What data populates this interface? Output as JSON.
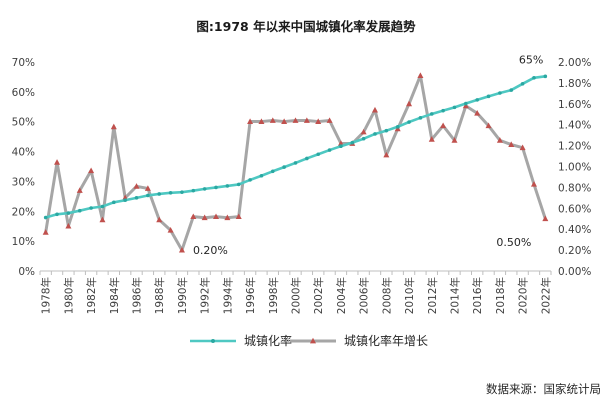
{
  "chart_data": {
    "type": "line",
    "title": "图:1978 年以来中国城镇化率发展趋势",
    "x": [
      "1978",
      "1979",
      "1980",
      "1981",
      "1982",
      "1983",
      "1984",
      "1985",
      "1986",
      "1987",
      "1988",
      "1989",
      "1990",
      "1991",
      "1992",
      "1993",
      "1994",
      "1995",
      "1996",
      "1997",
      "1998",
      "1999",
      "2000",
      "2001",
      "2002",
      "2003",
      "2004",
      "2005",
      "2006",
      "2007",
      "2008",
      "2009",
      "2010",
      "2011",
      "2012",
      "2013",
      "2014",
      "2015",
      "2016",
      "2017",
      "2018",
      "2019",
      "2020",
      "2021",
      "2022"
    ],
    "x_tick_labels": [
      "1978年",
      "1980年",
      "1982年",
      "1984年",
      "1986年",
      "1988年",
      "1990年",
      "1992年",
      "1994年",
      "1996年",
      "1998年",
      "2000年",
      "2002年",
      "2004年",
      "2006年",
      "2008年",
      "2010年",
      "2012年",
      "2014年",
      "2016年",
      "2018年",
      "2020年",
      "2022年"
    ],
    "y_left": {
      "range": [
        0,
        70
      ],
      "ticks": [
        "0%",
        "10%",
        "20%",
        "30%",
        "40%",
        "50%",
        "60%",
        "70%"
      ]
    },
    "y_right": {
      "range": [
        0,
        2.0
      ],
      "ticks": [
        "0.00%",
        "0.20%",
        "0.40%",
        "0.60%",
        "0.80%",
        "1.00%",
        "1.20%",
        "1.40%",
        "1.60%",
        "1.80%",
        "2.00%"
      ]
    },
    "series": [
      {
        "name": "城镇化率",
        "axis": "left",
        "color": "#4ec8c2",
        "values": [
          17.9,
          19.0,
          19.4,
          20.2,
          21.1,
          21.6,
          23.0,
          23.7,
          24.5,
          25.3,
          25.8,
          26.2,
          26.4,
          26.9,
          27.5,
          28.0,
          28.5,
          29.0,
          30.5,
          31.9,
          33.4,
          34.8,
          36.2,
          37.7,
          39.1,
          40.5,
          41.8,
          43.0,
          44.3,
          45.9,
          47.0,
          48.3,
          49.9,
          51.3,
          52.6,
          53.7,
          54.8,
          56.1,
          57.3,
          58.5,
          59.6,
          60.6,
          62.7,
          64.7,
          65.2
        ]
      },
      {
        "name": "城镇化率年增长",
        "axis": "right",
        "color": "#a6a6a6",
        "marker_color": "#c0504d",
        "values": [
          0.37,
          1.04,
          0.43,
          0.77,
          0.96,
          0.49,
          1.38,
          0.7,
          0.81,
          0.79,
          0.49,
          0.39,
          0.2,
          0.52,
          0.51,
          0.52,
          0.51,
          0.52,
          1.43,
          1.43,
          1.44,
          1.43,
          1.44,
          1.44,
          1.43,
          1.44,
          1.22,
          1.22,
          1.33,
          1.54,
          1.11,
          1.36,
          1.6,
          1.87,
          1.26,
          1.39,
          1.25,
          1.58,
          1.51,
          1.39,
          1.25,
          1.21,
          1.18,
          0.83,
          0.5
        ]
      }
    ],
    "annotations": [
      {
        "text": "65%",
        "series": "城镇化率",
        "x": "2022"
      },
      {
        "text": "0.20%",
        "series": "城镇化率年增长",
        "x": "1990"
      },
      {
        "text": "0.50%",
        "series": "城镇化率年增长",
        "x": "2022"
      }
    ],
    "legend": {
      "placement": "bottom",
      "items": [
        "城镇化率",
        "城镇化率年增长"
      ]
    },
    "grid": false
  },
  "source_text": "数据来源：国家统计局"
}
